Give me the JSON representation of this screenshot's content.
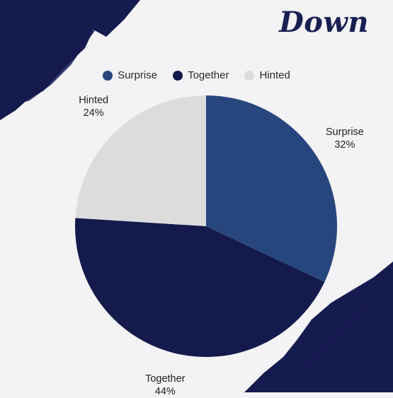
{
  "title": "Down",
  "colors": {
    "background": "#f3f3f5",
    "brush": "#151a4f"
  },
  "chart_data": {
    "type": "pie",
    "title": "",
    "legend_position": "top",
    "start_angle_deg": 0,
    "direction": "clockwise",
    "slices": [
      {
        "label": "Surprise",
        "value": 32,
        "value_label": "32%",
        "color": "#27467d"
      },
      {
        "label": "Together",
        "value": 44,
        "value_label": "44%",
        "color": "#141a4b"
      },
      {
        "label": "Hinted",
        "value": 24,
        "value_label": "24%",
        "color": "#dcdcdd"
      }
    ]
  }
}
